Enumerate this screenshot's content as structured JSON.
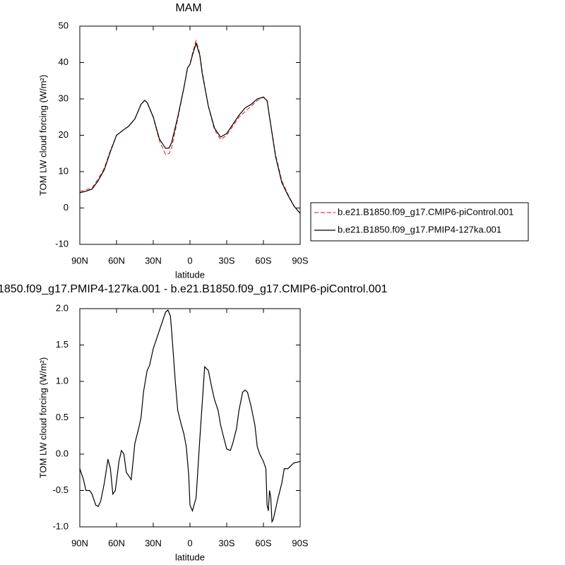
{
  "chart_data": [
    {
      "type": "line",
      "title": "MAM",
      "xlabel": "latitude",
      "ylabel": "TOM LW cloud forcing (W/m²)",
      "x": [
        90,
        85,
        80,
        75,
        70,
        65,
        60,
        55,
        50,
        45,
        40,
        37,
        35,
        30,
        25,
        20,
        17,
        15,
        10,
        5,
        2,
        0,
        -2,
        -5,
        -8,
        -10,
        -15,
        -20,
        -25,
        -30,
        -35,
        -40,
        -45,
        -50,
        -55,
        -60,
        -63,
        -65,
        -70,
        -75,
        -80,
        -85,
        -90
      ],
      "series": [
        {
          "name": "b.e21.B1850.f09_g17.CMIP6-piControl.001",
          "color": "#e8383d",
          "dash": true,
          "values": [
            4.5,
            5,
            5.5,
            8,
            11,
            15.8,
            20,
            21.3,
            22.5,
            24.5,
            28.5,
            29.6,
            29,
            25,
            18.5,
            14.7,
            15,
            16.5,
            24.5,
            33,
            38.5,
            39.5,
            42.5,
            46,
            42.5,
            37.5,
            28,
            21.5,
            18.8,
            20,
            22.5,
            25,
            26.5,
            28,
            29.5,
            30.5,
            29.5,
            25,
            14.5,
            7.5,
            3.8,
            0.5,
            -1.5
          ]
        },
        {
          "name": "b.e21.B1850.f09_g17.PMIP4-127ka.001",
          "color": "#000000",
          "dash": false,
          "values": [
            4.2,
            4.6,
            5.2,
            7.5,
            10.5,
            15.5,
            20,
            21.3,
            22.5,
            24.5,
            28.5,
            29.6,
            29,
            25,
            19,
            16.4,
            16.5,
            18,
            25,
            33,
            38.5,
            39.5,
            42,
            45.3,
            42,
            37,
            28,
            22,
            19.5,
            20.5,
            23,
            25.5,
            27.5,
            28.5,
            30,
            30.5,
            29.5,
            25,
            14,
            7,
            3.5,
            0.5,
            -1.5
          ]
        }
      ],
      "xlim": [
        90,
        -90
      ],
      "xticks": [
        {
          "value": 90,
          "label": "90N"
        },
        {
          "value": 60,
          "label": "60N"
        },
        {
          "value": 30,
          "label": "30N"
        },
        0,
        {
          "value": -30,
          "label": "30S"
        },
        {
          "value": -60,
          "label": "60S"
        },
        {
          "value": -90,
          "label": "90S"
        }
      ],
      "ylim": [
        -10,
        50
      ],
      "yticks": [
        -10,
        0,
        10,
        20,
        30,
        40,
        50
      ]
    },
    {
      "type": "line",
      "title": "1850.f09_g17.PMIP4-127ka.001 - b.e21.B1850.f09_g17.CMIP6-piControl.001",
      "xlabel": "latitude",
      "ylabel": "TOM LW cloud forcing (W/m²)",
      "x": [
        90,
        87,
        85,
        82,
        80,
        77,
        75,
        73,
        70,
        67,
        65,
        63,
        61,
        58,
        56,
        54,
        52,
        50,
        48,
        45,
        42,
        40,
        38,
        35,
        33,
        30,
        27,
        25,
        22,
        20,
        18,
        16,
        15,
        12,
        10,
        7,
        5,
        3,
        1,
        0,
        -2,
        -5,
        -8,
        -10,
        -12,
        -15,
        -18,
        -20,
        -23,
        -25,
        -28,
        -30,
        -33,
        -35,
        -38,
        -40,
        -43,
        -45,
        -47,
        -50,
        -53,
        -55,
        -57,
        -60,
        -62,
        -63,
        -64,
        -65,
        -66,
        -67,
        -68,
        -70,
        -72,
        -75,
        -77,
        -80,
        -83,
        -85,
        -88,
        -90
      ],
      "series": [
        {
          "color": "#000000",
          "dash": false,
          "values": [
            -0.2,
            -0.35,
            -0.5,
            -0.5,
            -0.55,
            -0.7,
            -0.72,
            -0.65,
            -0.4,
            -0.07,
            -0.2,
            -0.55,
            -0.5,
            -0.1,
            0.05,
            0.0,
            -0.25,
            -0.3,
            -0.35,
            0.15,
            0.35,
            0.5,
            0.85,
            1.15,
            1.22,
            1.45,
            1.6,
            1.7,
            1.85,
            1.95,
            1.98,
            1.9,
            1.7,
            1.0,
            0.6,
            0.4,
            0.28,
            0.1,
            -0.3,
            -0.7,
            -0.78,
            -0.6,
            0.2,
            0.7,
            1.2,
            1.15,
            0.9,
            0.75,
            0.6,
            0.4,
            0.2,
            0.07,
            0.05,
            0.15,
            0.35,
            0.6,
            0.85,
            0.88,
            0.85,
            0.65,
            0.4,
            0.1,
            0.0,
            -0.1,
            -0.2,
            -0.7,
            -0.78,
            -0.5,
            -0.6,
            -0.93,
            -0.9,
            -0.75,
            -0.6,
            -0.4,
            -0.2,
            -0.2,
            -0.15,
            -0.12,
            -0.11,
            -0.1
          ]
        }
      ],
      "xlim": [
        90,
        -90
      ],
      "xticks": [
        {
          "value": 90,
          "label": "90N"
        },
        {
          "value": 60,
          "label": "60N"
        },
        {
          "value": 30,
          "label": "30N"
        },
        0,
        {
          "value": -30,
          "label": "30S"
        },
        {
          "value": -60,
          "label": "60S"
        },
        {
          "value": -90,
          "label": "90S"
        }
      ],
      "ylim": [
        -1,
        2
      ],
      "yticks": [
        {
          "value": -1,
          "label": "-1.0"
        },
        {
          "value": -0.5,
          "label": "-0.5"
        },
        {
          "value": 0,
          "label": "0.0"
        },
        {
          "value": 0.5,
          "label": "0.5"
        },
        {
          "value": 1,
          "label": "1.0"
        },
        {
          "value": 1.5,
          "label": "1.5"
        },
        {
          "value": 2,
          "label": "2.0"
        }
      ]
    }
  ]
}
